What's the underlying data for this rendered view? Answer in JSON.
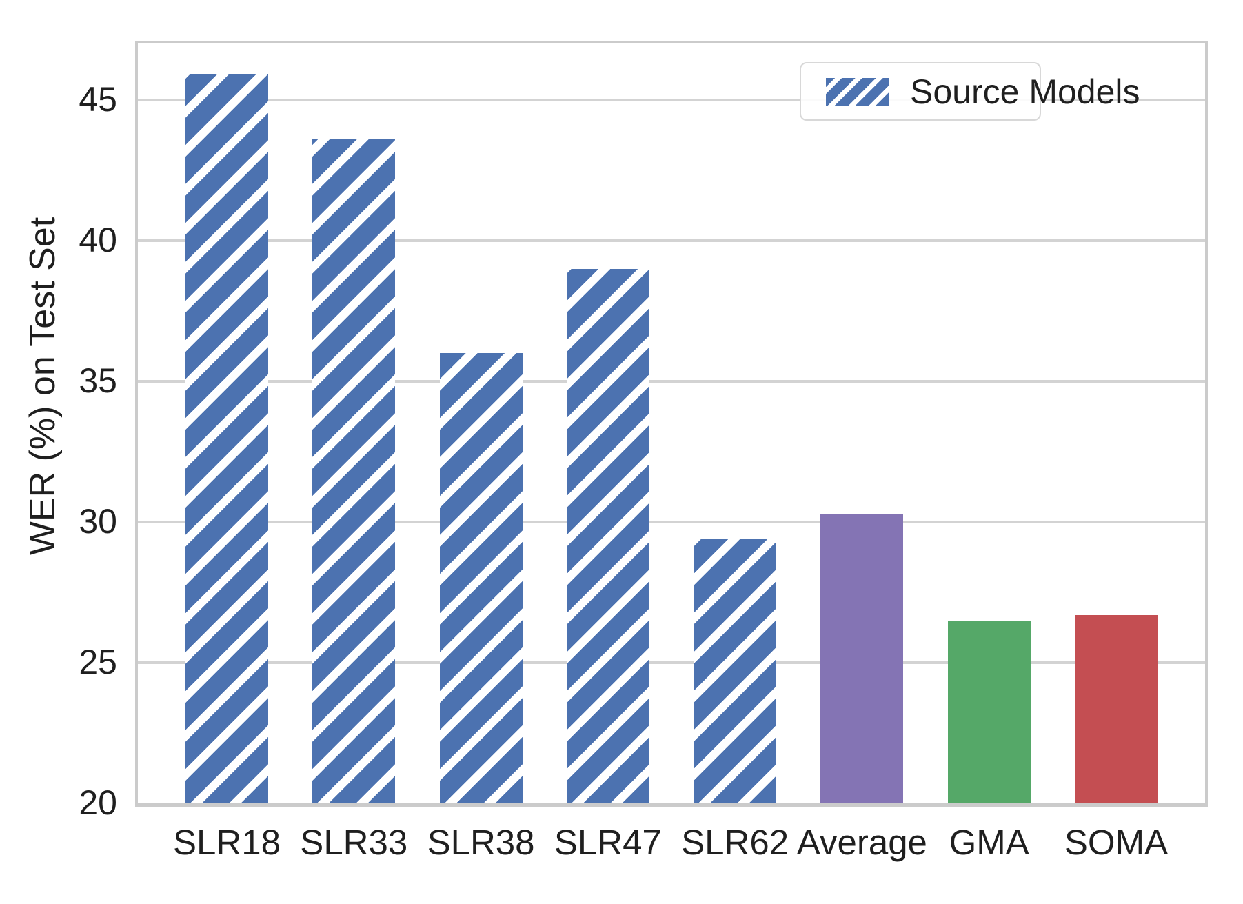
{
  "chart_data": {
    "type": "bar",
    "title": "",
    "categories": [
      "SLR18",
      "SLR33",
      "SLR38",
      "SLR47",
      "SLR62",
      "Average",
      "GMA",
      "SOMA"
    ],
    "values": [
      45.9,
      43.6,
      36.0,
      39.0,
      29.4,
      30.3,
      26.5,
      26.7
    ],
    "bar_colors": [
      "#4C72B0",
      "#4C72B0",
      "#4C72B0",
      "#4C72B0",
      "#4C72B0",
      "#8474B4",
      "#55A868",
      "#C44E52"
    ],
    "bar_hatched": [
      true,
      true,
      true,
      true,
      true,
      false,
      false,
      false
    ],
    "xlabel": "",
    "ylabel": "WER (%) on Test Set",
    "ylim": [
      20,
      47
    ],
    "yticks": [
      20,
      25,
      30,
      35,
      40,
      45
    ],
    "grid": "horizontal-only",
    "legend": {
      "position": "upper-right",
      "entries": [
        {
          "label": "Source Models",
          "color": "#4C72B0",
          "hatch": true
        }
      ]
    }
  },
  "colors": {
    "source_blue": "#4C72B0",
    "average_purple": "#8474B4",
    "gma_green": "#55A868",
    "soma_red": "#C44E52",
    "hatch_stripe": "#ffffff",
    "gridline": "#d3d3d3",
    "spine": "#cbcbcb",
    "text": "#1f1f1f",
    "background": "#ffffff"
  }
}
